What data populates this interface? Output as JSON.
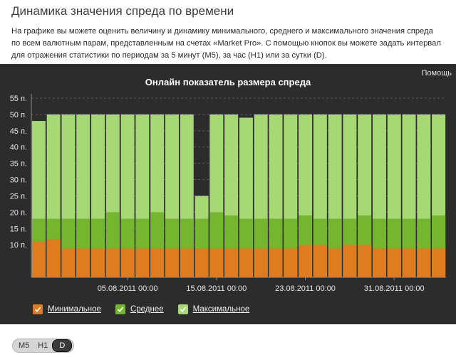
{
  "page": {
    "title": "Динамика значения спреда по времени",
    "description": "На графике вы можете оценить величину и динамику минимального, среднего и максимального значения спреда по всем валютным парам, представленным на счетах «Market Pro». С помощью кнопок вы можете задать интервал для отражения статистики по периодам за 5 минут (M5), за час (H1) или за сутки (D)."
  },
  "panel": {
    "help_label": "Помощь"
  },
  "legend": [
    {
      "label": "Минимальное",
      "color": "#e07b20"
    },
    {
      "label": "Среднее",
      "color": "#74b72e"
    },
    {
      "label": "Максимальное",
      "color": "#a6d873"
    }
  ],
  "periods": [
    {
      "label": "M5",
      "active": false
    },
    {
      "label": "H1",
      "active": false
    },
    {
      "label": "D",
      "active": true
    }
  ],
  "chart_data": {
    "type": "bar",
    "stacked": false,
    "overlapping": true,
    "title": "Онлайн показатель размера спреда",
    "y_unit": "п.",
    "ylim": [
      0,
      55
    ],
    "y_ticks": [
      10,
      15,
      20,
      25,
      30,
      35,
      40,
      45,
      50,
      55
    ],
    "x_tick_labels": [
      "05.08.2011 00:00",
      "15.08.2011 00:00",
      "23.08.2011 00:00",
      "31.08.2011 00:00"
    ],
    "x_tick_bar_index": [
      6,
      12,
      18,
      24
    ],
    "grid": true,
    "legend_position": "bottom-left",
    "colors": {
      "min": "#e07b20",
      "avg": "#74b72e",
      "max": "#a6d873"
    },
    "series": [
      {
        "name": "Минимальное",
        "values": [
          11,
          12,
          9,
          9,
          9,
          9,
          9,
          9,
          9,
          9,
          9,
          9,
          9,
          9,
          9,
          9,
          9,
          9,
          10,
          10,
          9,
          10,
          10,
          9,
          9,
          9,
          9,
          9
        ]
      },
      {
        "name": "Среднее",
        "values": [
          18,
          18,
          18,
          18,
          18,
          20,
          18,
          18,
          20,
          18,
          18,
          18,
          20,
          19,
          18,
          18,
          18,
          18,
          19,
          18,
          18,
          18,
          19,
          18,
          18,
          18,
          18,
          19
        ]
      },
      {
        "name": "Максимальное",
        "values": [
          48,
          50,
          50,
          50,
          50,
          50,
          50,
          50,
          50,
          50,
          50,
          25,
          50,
          50,
          49,
          50,
          50,
          50,
          50,
          50,
          50,
          50,
          50,
          50,
          50,
          50,
          50,
          50
        ]
      }
    ]
  }
}
